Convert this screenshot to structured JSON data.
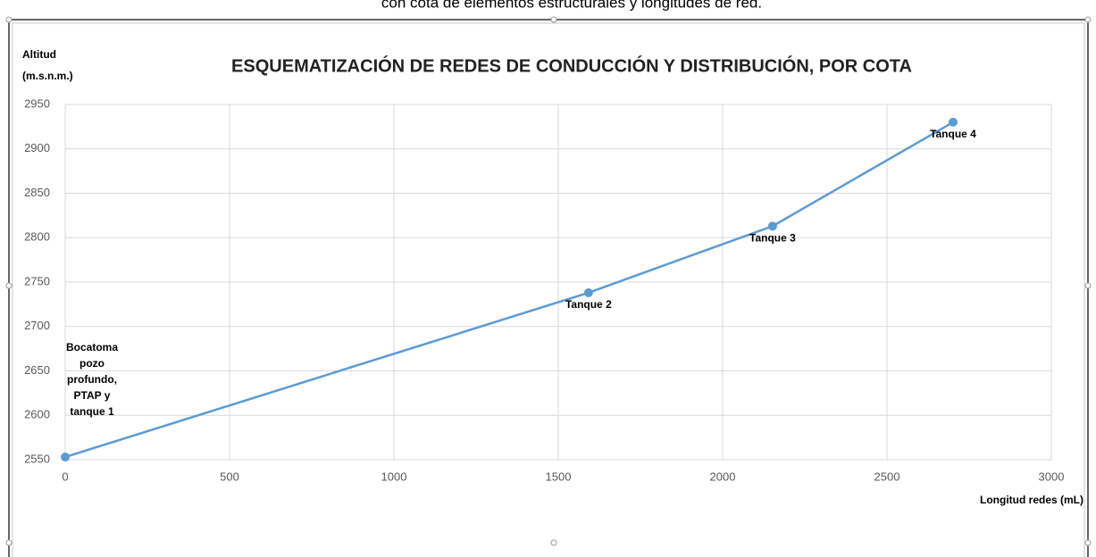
{
  "caption": "con cota de elementos estructurales y longitudes de red.",
  "chart_data": {
    "type": "line",
    "title": "ESQUEMATIZACIÓN DE REDES DE CONDUCCIÓN Y DISTRIBUCIÓN, POR COTA",
    "y_label": [
      "Altitud",
      "(m.s.n.m.)"
    ],
    "x_label": "Longitud redes (mL)",
    "x": [
      0,
      1592,
      2152,
      2701
    ],
    "values": [
      2553,
      2738,
      2813,
      2930
    ],
    "color": "#5b9bd5",
    "point_labels": [
      [
        "Bocatoma",
        "pozo",
        "profundo,",
        "PTAP y",
        "tanque 1"
      ],
      [
        "Tanque 2"
      ],
      [
        "Tanque 3"
      ],
      [
        "Tanque 4"
      ]
    ],
    "xlim": [
      0,
      3000
    ],
    "xticks": [
      0,
      500,
      1000,
      1500,
      2000,
      2500,
      3000
    ],
    "ylim": [
      2550,
      2950
    ],
    "yticks": [
      2550,
      2600,
      2650,
      2700,
      2750,
      2800,
      2850,
      2900,
      2950
    ],
    "grid": true
  }
}
